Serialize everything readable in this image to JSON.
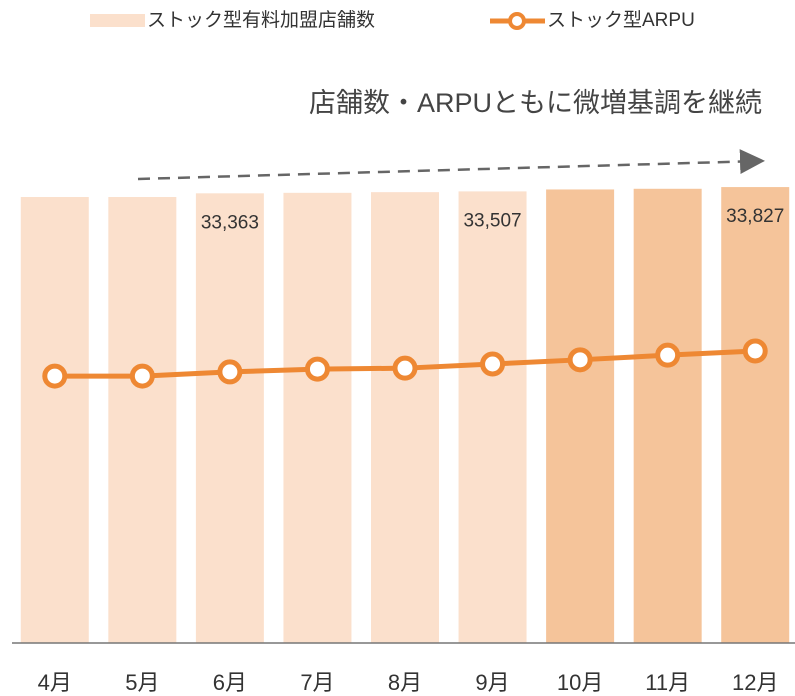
{
  "chart_data": {
    "type": "bar-line",
    "annotation": "店舗数・ARPUともに微増基調を継続",
    "categories": [
      "4月",
      "5月",
      "6月",
      "7月",
      "8月",
      "9月",
      "10月",
      "11月",
      "12月"
    ],
    "series": [
      {
        "name": "ストック型有料加盟店舗数",
        "type": "bar",
        "color": "#fbe0cc",
        "colors": [
          "#fbe0cc",
          "#fbe0cc",
          "#fbe0cc",
          "#fbe0cc",
          "#fbe0cc",
          "#fbe0cc",
          "#f5c49a",
          "#f5c49a",
          "#f5c49a"
        ],
        "values": [
          33090,
          33090,
          33363,
          33400,
          33450,
          33507,
          33650,
          33700,
          33827
        ],
        "value_labels": [
          null,
          null,
          "33,363",
          null,
          null,
          "33,507",
          null,
          null,
          "33,827"
        ]
      },
      {
        "name": "ストック型ARPU",
        "type": "line",
        "axis": "y2",
        "color": "#ee8833",
        "values": [
          574,
          574,
          583,
          589,
          591,
          600,
          609,
          619,
          628
        ]
      }
    ],
    "ylim": [
      0,
      34500
    ],
    "y2lim": [
      0,
      1000
    ]
  }
}
